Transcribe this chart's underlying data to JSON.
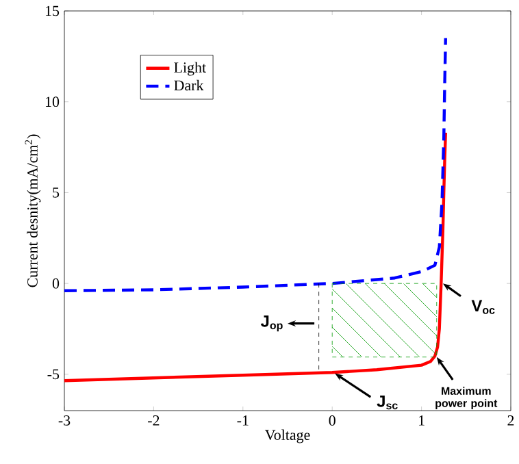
{
  "chart_data": {
    "type": "line",
    "xlabel": "Voltage",
    "ylabel": "Current desnity(mA/cm$^{2}$)",
    "series": [
      {
        "name": "Light",
        "color": "#ff0000",
        "line_style": "solid",
        "x": [
          -3,
          -2,
          -1,
          0,
          0.5,
          1.0,
          1.1,
          1.15,
          1.18,
          1.2,
          1.22,
          1.24,
          1.25,
          1.26,
          1.27
        ],
        "values": [
          -5.35,
          -5.2,
          -5.05,
          -4.9,
          -4.75,
          -4.5,
          -4.3,
          -4.0,
          -3.5,
          -2.5,
          0,
          3,
          5,
          6.8,
          8.3
        ]
      },
      {
        "name": "Dark",
        "color": "#0000ff",
        "line_style": "dashed",
        "x": [
          -3,
          -2,
          -1,
          0,
          0.7,
          1.0,
          1.15,
          1.2,
          1.23,
          1.25,
          1.26,
          1.27
        ],
        "values": [
          -0.4,
          -0.35,
          -0.2,
          0,
          0.3,
          0.65,
          1.0,
          2,
          4.5,
          8,
          11,
          13.5
        ]
      }
    ],
    "xlim": [
      -3,
      2
    ],
    "ylim": [
      -7,
      15
    ],
    "xticks": [
      -3,
      -2,
      -1,
      0,
      1,
      2
    ],
    "yticks": [
      -5,
      0,
      5,
      10,
      15
    ],
    "grid": false,
    "legend": "top left",
    "marker": "none",
    "annotations": [
      "J$_{op}$",
      {
        "text": "V$_{oc}$",
        "x": 1.24,
        "y": 0
      },
      {
        "text": "J$_{sc}$",
        "x": 0.03,
        "y": -4.95
      },
      {
        "text": "Maximum power point",
        "x": 1.17,
        "y": -4.05
      }
    ]
  }
}
